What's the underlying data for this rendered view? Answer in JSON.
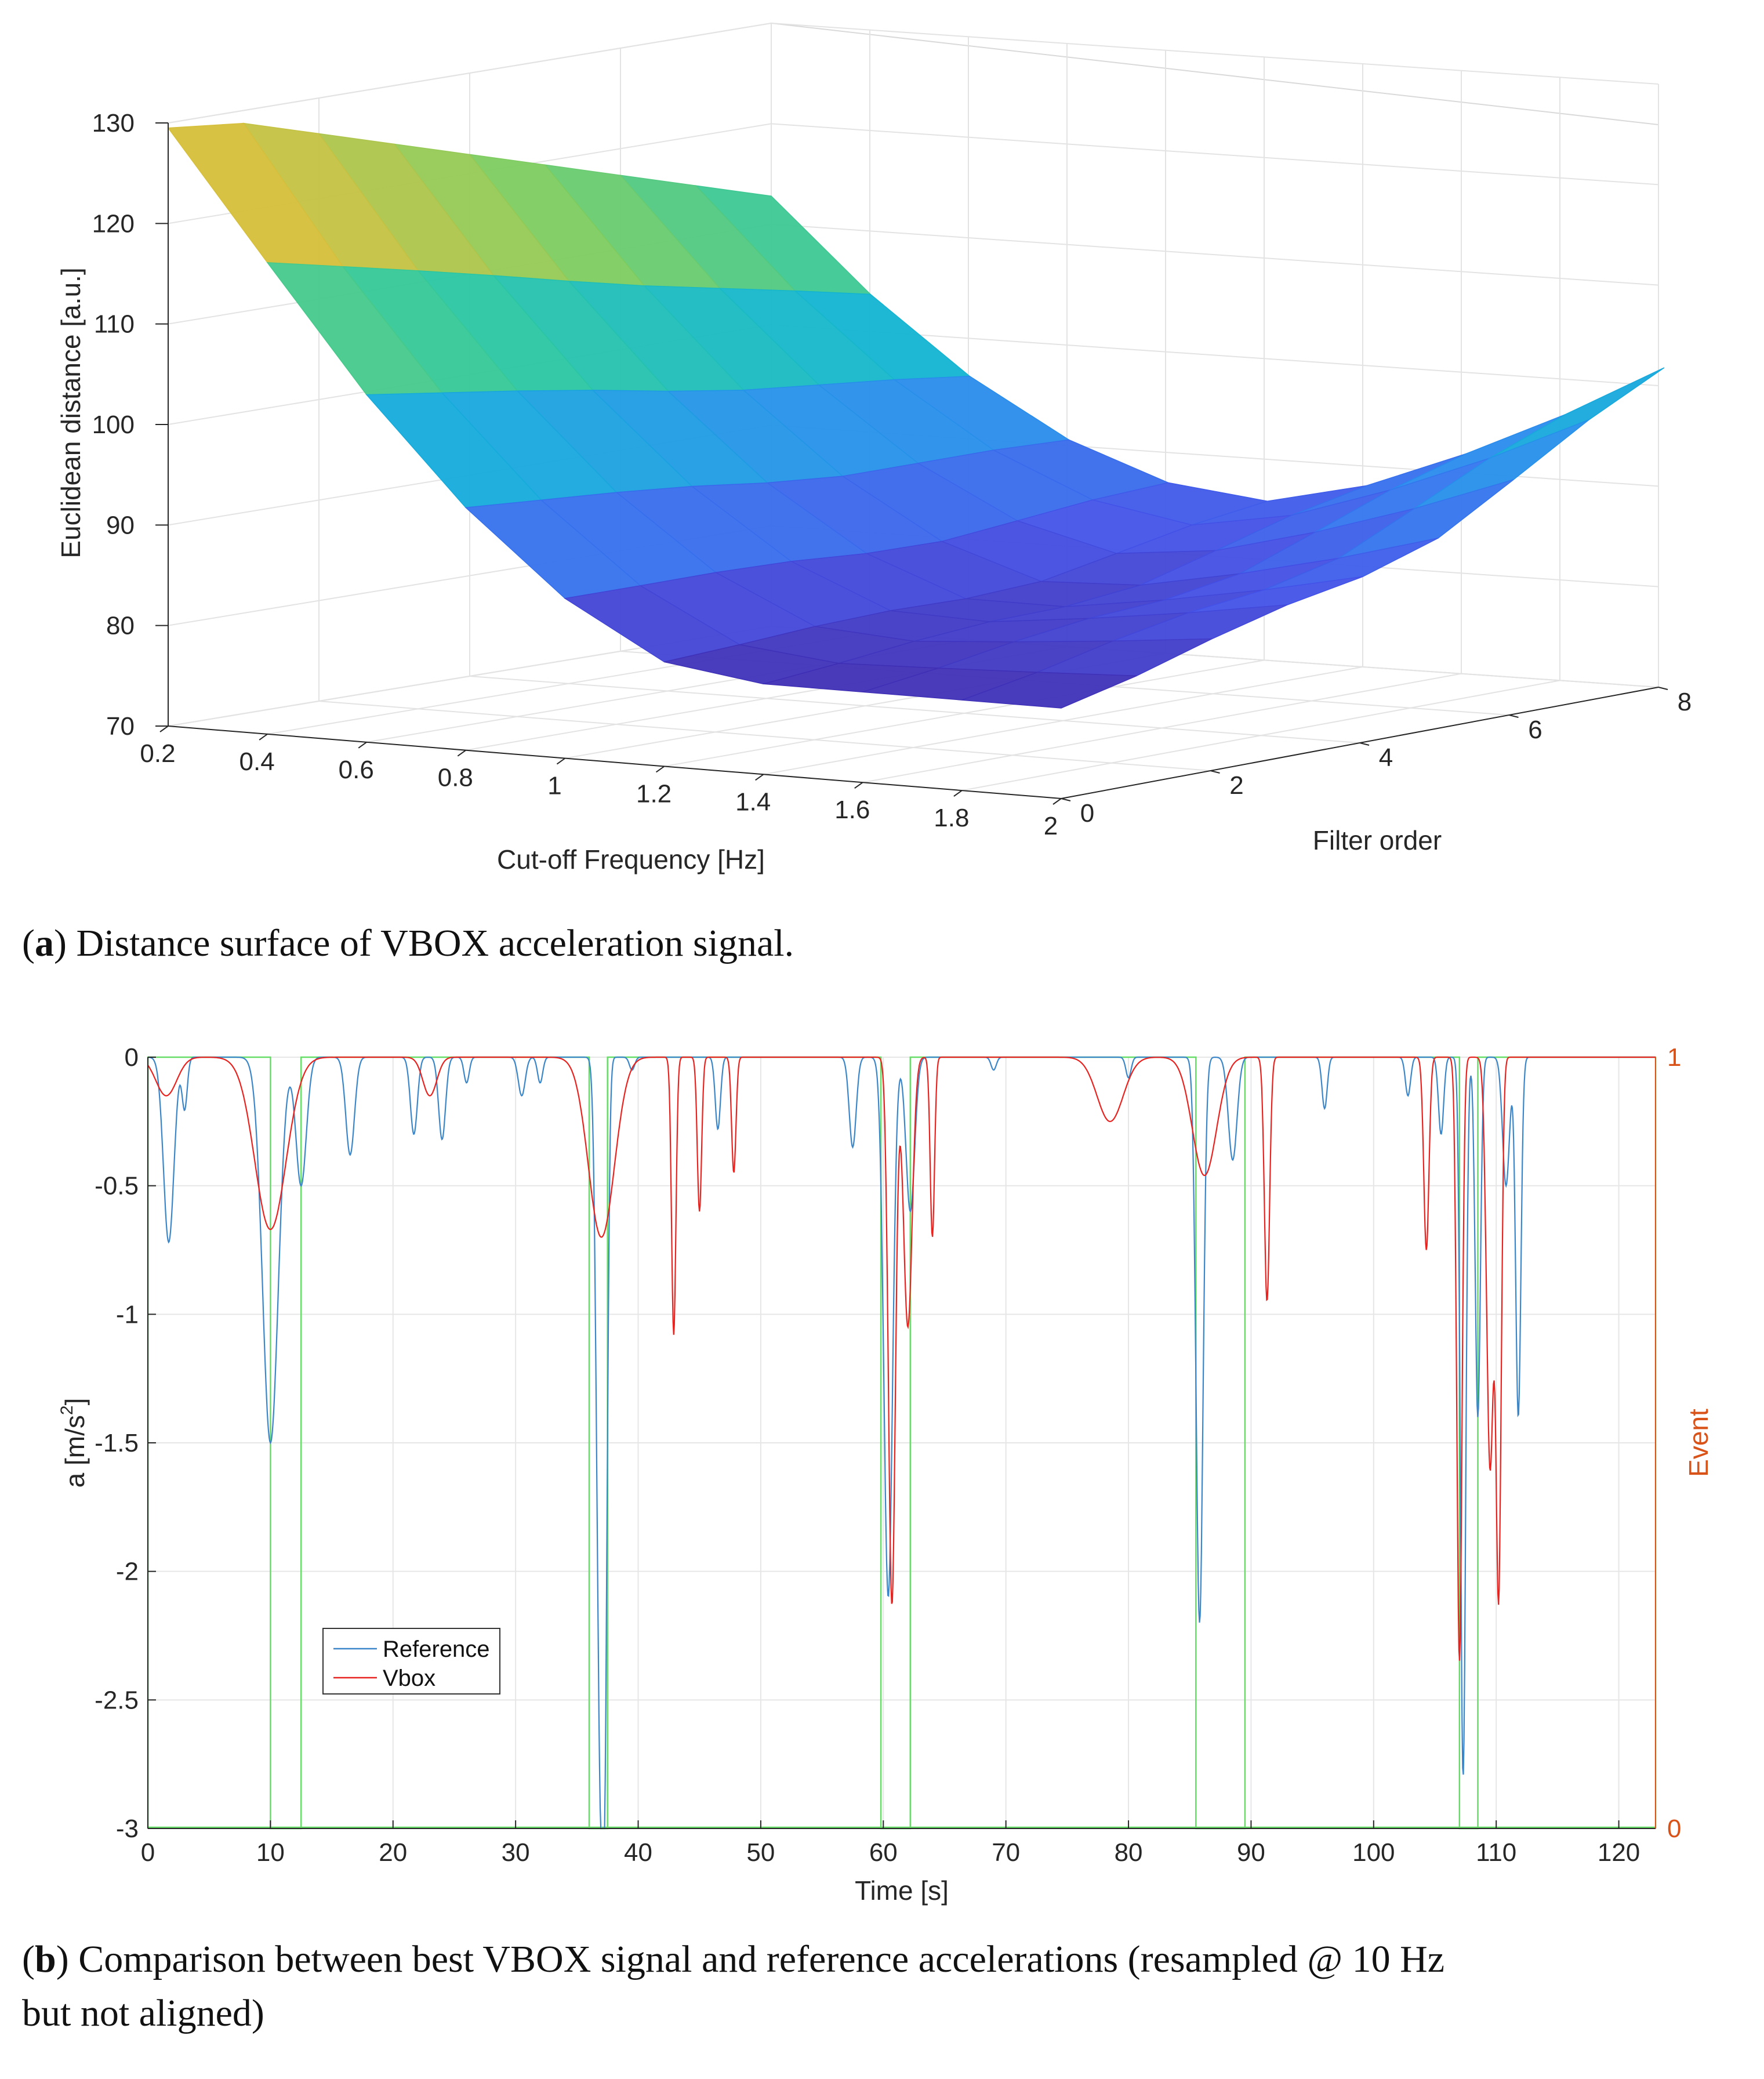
{
  "chart_data": [
    {
      "type": "surface",
      "panel_caption_letter": "a",
      "panel_caption_text": "Distance surface of VBOX acceleration signal.",
      "xlabel": "Cut-off Frequency [Hz]",
      "ylabel": "Filter order",
      "zlabel": "Euclidean distance [a.u.]",
      "xlim": [
        0.2,
        2
      ],
      "ylim": [
        0,
        8
      ],
      "zlim": [
        70,
        130
      ],
      "x_ticks": [
        "0.2",
        "0.4",
        "0.6",
        "0.8",
        "1",
        "1.2",
        "1.4",
        "1.6",
        "1.8",
        "2"
      ],
      "y_ticks": [
        "0",
        "2",
        "4",
        "6",
        "8"
      ],
      "z_ticks": [
        "70",
        "80",
        "90",
        "100",
        "110",
        "120",
        "130"
      ],
      "colormap": [
        "#3e26a8",
        "#4352e8",
        "#2d85f0",
        "#10b3d6",
        "#2bc7a0",
        "#7fcc5e",
        "#d6bf3a",
        "#f9fb15"
      ],
      "grid": true
    },
    {
      "type": "line",
      "panel_caption_letter": "b",
      "panel_caption_text": "Comparison between best VBOX signal and reference accelerations (resampled @ 10 Hz",
      "panel_caption_text_line2": "but not aligned)",
      "xlabel": "Time [s]",
      "ylabel": "a [m/s",
      "ylabel_sup": "2",
      "ylabel_close": "]",
      "y2label": "Event",
      "xlim": [
        0,
        123
      ],
      "ylim": [
        -3,
        0
      ],
      "y2lim": [
        0,
        1
      ],
      "x_ticks": [
        "0",
        "10",
        "20",
        "30",
        "40",
        "50",
        "60",
        "70",
        "80",
        "90",
        "100",
        "110",
        "120"
      ],
      "y_ticks": [
        "0",
        "-0.5",
        "-1",
        "-1.5",
        "-2",
        "-2.5",
        "-3"
      ],
      "y2_ticks": [
        "0",
        "1"
      ],
      "grid": true,
      "legend_position": "lower-left",
      "series": [
        {
          "name": "Reference",
          "color": "#3a86c8",
          "dips": [
            {
              "t": 1.7,
              "depth": -0.72,
              "w": 0.6
            },
            {
              "t": 3.0,
              "depth": -0.2,
              "w": 0.3
            },
            {
              "t": 10.0,
              "depth": -1.5,
              "w": 0.9
            },
            {
              "t": 12.5,
              "depth": -0.5,
              "w": 0.6
            },
            {
              "t": 16.5,
              "depth": -0.38,
              "w": 0.5
            },
            {
              "t": 21.7,
              "depth": -0.3,
              "w": 0.4
            },
            {
              "t": 24.0,
              "depth": -0.32,
              "w": 0.4
            },
            {
              "t": 26.0,
              "depth": -0.1,
              "w": 0.3
            },
            {
              "t": 30.5,
              "depth": -0.15,
              "w": 0.4
            },
            {
              "t": 32.0,
              "depth": -0.1,
              "w": 0.3
            },
            {
              "t": 36.9,
              "depth": -2.6,
              "w": 0.4
            },
            {
              "t": 37.3,
              "depth": -1.9,
              "w": 0.3
            },
            {
              "t": 39.5,
              "depth": -0.05,
              "w": 0.3
            },
            {
              "t": 46.5,
              "depth": -0.28,
              "w": 0.3
            },
            {
              "t": 57.5,
              "depth": -0.35,
              "w": 0.4
            },
            {
              "t": 60.4,
              "depth": -2.1,
              "w": 0.5
            },
            {
              "t": 62.2,
              "depth": -0.6,
              "w": 0.5
            },
            {
              "t": 69.0,
              "depth": -0.05,
              "w": 0.3
            },
            {
              "t": 80.0,
              "depth": -0.08,
              "w": 0.3
            },
            {
              "t": 85.8,
              "depth": -2.2,
              "w": 0.4
            },
            {
              "t": 88.5,
              "depth": -0.4,
              "w": 0.5
            },
            {
              "t": 96.0,
              "depth": -0.2,
              "w": 0.3
            },
            {
              "t": 102.8,
              "depth": -0.15,
              "w": 0.3
            },
            {
              "t": 105.5,
              "depth": -0.3,
              "w": 0.3
            },
            {
              "t": 107.3,
              "depth": -2.8,
              "w": 0.3
            },
            {
              "t": 108.5,
              "depth": -1.4,
              "w": 0.3
            },
            {
              "t": 110.8,
              "depth": -0.5,
              "w": 0.4
            },
            {
              "t": 111.8,
              "depth": -1.4,
              "w": 0.3
            }
          ]
        },
        {
          "name": "Vbox",
          "color": "#e8231f",
          "dips": [
            {
              "t": 1.5,
              "depth": -0.15,
              "w": 1.2
            },
            {
              "t": 10.0,
              "depth": -0.67,
              "w": 1.8
            },
            {
              "t": 23.0,
              "depth": -0.15,
              "w": 0.8
            },
            {
              "t": 37.0,
              "depth": -0.7,
              "w": 1.5
            },
            {
              "t": 42.9,
              "depth": -1.08,
              "w": 0.25
            },
            {
              "t": 45.0,
              "depth": -0.6,
              "w": 0.25
            },
            {
              "t": 47.8,
              "depth": -0.45,
              "w": 0.25
            },
            {
              "t": 60.7,
              "depth": -2.13,
              "w": 0.4
            },
            {
              "t": 62.0,
              "depth": -1.05,
              "w": 0.5
            },
            {
              "t": 64.0,
              "depth": -0.7,
              "w": 0.25
            },
            {
              "t": 78.5,
              "depth": -0.25,
              "w": 1.5
            },
            {
              "t": 86.2,
              "depth": -0.46,
              "w": 1.4
            },
            {
              "t": 91.3,
              "depth": -0.95,
              "w": 0.3
            },
            {
              "t": 104.3,
              "depth": -0.75,
              "w": 0.3
            },
            {
              "t": 107.0,
              "depth": -2.35,
              "w": 0.3
            },
            {
              "t": 109.5,
              "depth": -1.6,
              "w": 0.4
            },
            {
              "t": 110.2,
              "depth": -2.05,
              "w": 0.3
            }
          ]
        },
        {
          "name": "Event",
          "color": "#66dd66",
          "axis": "right",
          "event_on": [
            [
              0,
              10.0
            ],
            [
              12.5,
              36.0
            ],
            [
              37.5,
              59.8
            ],
            [
              62.2,
              85.5
            ],
            [
              89.5,
              107.0
            ],
            [
              108.5,
              123
            ]
          ]
        }
      ]
    }
  ]
}
